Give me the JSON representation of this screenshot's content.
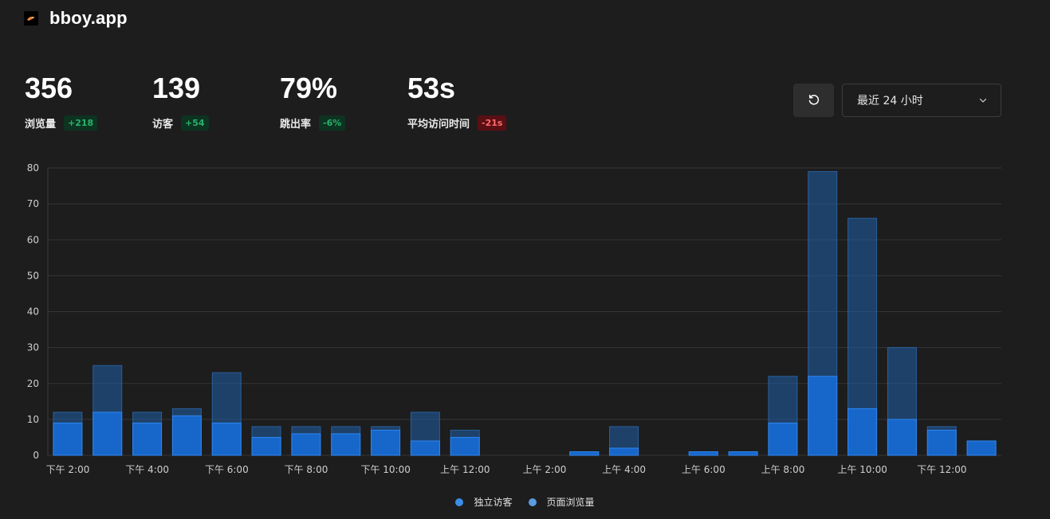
{
  "header": {
    "site_name": "bboy.app",
    "favicon_icon": "bird-logo-icon"
  },
  "stats": [
    {
      "value": "356",
      "label": "浏览量",
      "change": "+218",
      "trend": "up"
    },
    {
      "value": "139",
      "label": "访客",
      "change": "+54",
      "trend": "up"
    },
    {
      "value": "79%",
      "label": "跳出率",
      "change": "-6%",
      "trend": "up"
    },
    {
      "value": "53s",
      "label": "平均访问时间",
      "change": "-21s",
      "trend": "down"
    }
  ],
  "controls": {
    "refresh_icon": "refresh-icon",
    "range_label": "最近 24 小时",
    "range_chevron_icon": "chevron-down-icon"
  },
  "colors": {
    "background": "#1d1d1d",
    "visitors": "#2680eb",
    "pageviews": "#1f5ea8",
    "badge_up_bg": "#0d3321",
    "badge_up_text": "#2ab36b",
    "badge_down_bg": "#5a0f14",
    "badge_down_text": "#ff6b6b"
  },
  "chart_data": {
    "type": "bar",
    "ylim": [
      0,
      80
    ],
    "y_ticks": [
      0,
      10,
      20,
      30,
      40,
      50,
      60,
      70,
      80
    ],
    "grid": true,
    "legend_position": "bottom-center",
    "x_tick_labels": [
      {
        "index": 0,
        "label": "下午 2:00"
      },
      {
        "index": 2,
        "label": "下午 4:00"
      },
      {
        "index": 4,
        "label": "下午 6:00"
      },
      {
        "index": 6,
        "label": "下午 8:00"
      },
      {
        "index": 8,
        "label": "下午 10:00"
      },
      {
        "index": 10,
        "label": "上午 12:00"
      },
      {
        "index": 12,
        "label": "上午 2:00"
      },
      {
        "index": 14,
        "label": "上午 4:00"
      },
      {
        "index": 16,
        "label": "上午 6:00"
      },
      {
        "index": 18,
        "label": "上午 8:00"
      },
      {
        "index": 20,
        "label": "上午 10:00"
      },
      {
        "index": 22,
        "label": "下午 12:00"
      }
    ],
    "series": [
      {
        "name": "独立访客",
        "color": "#2680eb",
        "values": [
          9,
          12,
          9,
          11,
          9,
          5,
          6,
          6,
          7,
          4,
          5,
          0,
          0,
          1,
          2,
          0,
          1,
          1,
          9,
          22,
          13,
          10,
          7,
          4
        ]
      },
      {
        "name": "页面浏览量",
        "color": "#1f5ea8",
        "values": [
          12,
          25,
          12,
          13,
          23,
          8,
          8,
          8,
          8,
          12,
          7,
          0,
          0,
          1,
          8,
          0,
          1,
          1,
          22,
          79,
          66,
          30,
          8,
          4
        ]
      }
    ]
  }
}
